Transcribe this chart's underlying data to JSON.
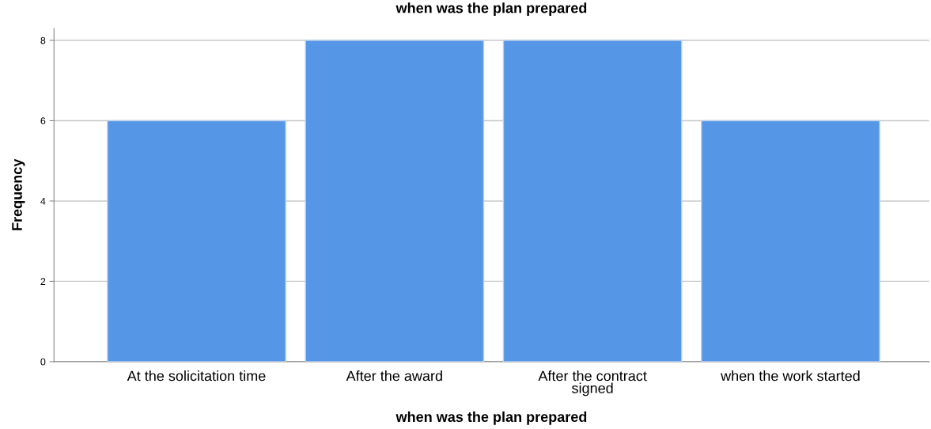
{
  "chart_data": {
    "type": "bar",
    "title": "when was the plan prepared",
    "xlabel": "when was the plan prepared",
    "ylabel": "Frequency",
    "categories": [
      "At the solicitation time",
      "After the award",
      "After the contract\nsigned",
      "when the work started"
    ],
    "values": [
      6,
      8,
      8,
      6
    ],
    "color": "#5596e6",
    "ylim": [
      0,
      8.3
    ],
    "yticks": [
      0,
      2,
      4,
      6,
      8
    ],
    "grid": "y"
  }
}
